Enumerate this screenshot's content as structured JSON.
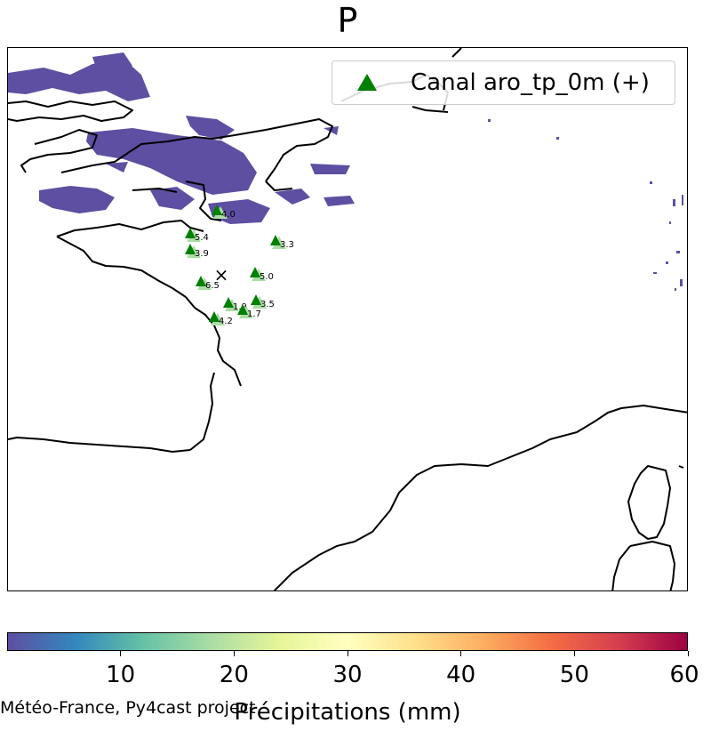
{
  "title": "P",
  "legend": {
    "label": "Canal aro_tp_0m (+)",
    "marker_color": "#008000"
  },
  "marker_color": "#008000",
  "center_marker": "×",
  "stations": [
    {
      "label": "4.0"
    },
    {
      "label": "5.4"
    },
    {
      "label": "3.9"
    },
    {
      "label": "3.3"
    },
    {
      "label": "5.0"
    },
    {
      "label": "6.5"
    },
    {
      "label": "1.9"
    },
    {
      "label": "1.7"
    },
    {
      "label": "3.5"
    },
    {
      "label": "4.2"
    }
  ],
  "colorbar": {
    "label": "Précipitations (mm)",
    "colormap": [
      "#5e4fa2",
      "#3288bd",
      "#66c2a5",
      "#abdda4",
      "#e6f598",
      "#ffffbf",
      "#fee08b",
      "#fdae61",
      "#f46d43",
      "#d53e4f",
      "#9e0142"
    ],
    "range": [
      0,
      60
    ],
    "ticks": [
      "10",
      "20",
      "30",
      "40",
      "50",
      "60"
    ]
  },
  "credit": "Météo-France, Py4cast project"
}
